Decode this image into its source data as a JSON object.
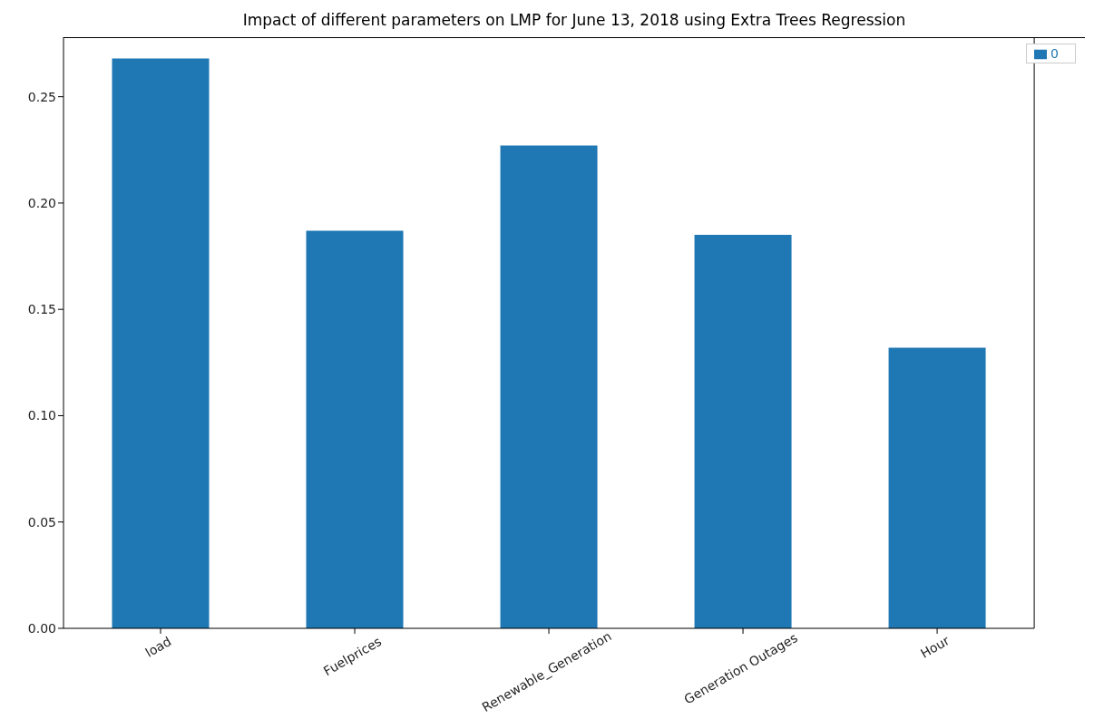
{
  "chart_data": {
    "type": "bar",
    "title": "Impact of different parameters on LMP for June 13, 2018 using Extra Trees Regression",
    "categories": [
      "load",
      "Fuelprices",
      "Renewable_Generation",
      "Generation Outages",
      "Hour"
    ],
    "series": [
      {
        "name": "0",
        "color": "#1f77b4",
        "values": [
          0.268,
          0.187,
          0.227,
          0.185,
          0.132
        ]
      }
    ],
    "ylim": [
      0,
      0.278
    ],
    "yticks": [
      {
        "value": 0,
        "label": "0.00"
      },
      {
        "value": 0.05,
        "label": "0.05"
      },
      {
        "value": 0.1,
        "label": "0.10"
      },
      {
        "value": 0.15,
        "label": "0.15"
      },
      {
        "value": 0.2,
        "label": "0.20"
      },
      {
        "value": 0.25,
        "label": "0.25"
      }
    ],
    "grid": false,
    "legend": "top right"
  }
}
